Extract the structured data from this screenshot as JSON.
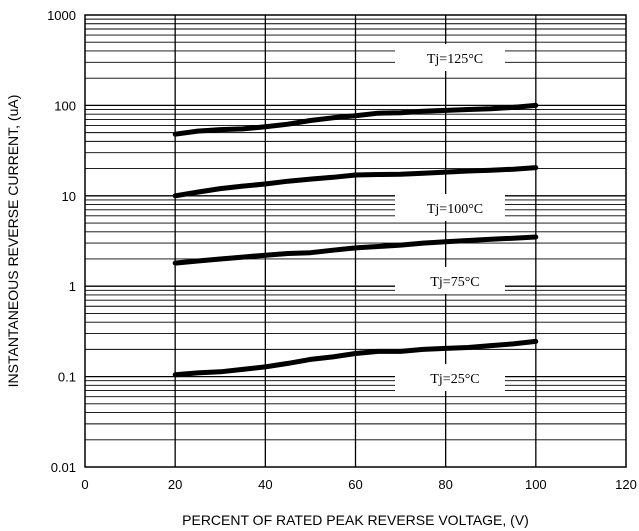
{
  "chart_data": {
    "type": "line",
    "title": "",
    "xlabel": "PERCENT OF RATED PEAK REVERSE VOLTAGE, (V)",
    "ylabel": "INSTANTANEOUS REVERSE CURRENT, (uA)",
    "xlim": [
      0,
      120
    ],
    "ylim": [
      0.01,
      1000
    ],
    "y_scale": "log",
    "grid": true,
    "x_ticks": [
      0,
      20,
      40,
      60,
      80,
      100,
      120
    ],
    "y_ticks": [
      0.01,
      0.1,
      1,
      10,
      100,
      1000
    ],
    "x_tick_labels": [
      "0",
      "20",
      "40",
      "60",
      "80",
      "100",
      "120"
    ],
    "y_tick_labels": [
      "0.01",
      "0.1",
      "1",
      "10",
      "100",
      "1000"
    ],
    "line_color": "#000000",
    "series": [
      {
        "name": "Tj=125°C",
        "x": [
          20,
          25,
          30,
          35,
          40,
          45,
          50,
          55,
          60,
          65,
          70,
          75,
          80,
          85,
          90,
          95,
          100
        ],
        "y": [
          48,
          52,
          54,
          55,
          58,
          62,
          68,
          73,
          77,
          82,
          83,
          86,
          88,
          90,
          92,
          95,
          100
        ]
      },
      {
        "name": "Tj=100°C",
        "x": [
          20,
          25,
          30,
          35,
          40,
          45,
          50,
          55,
          60,
          65,
          70,
          75,
          80,
          85,
          90,
          95,
          100
        ],
        "y": [
          10,
          11,
          12,
          12.8,
          13.5,
          14.5,
          15.3,
          16,
          17,
          17.2,
          17.3,
          17.8,
          18.3,
          18.8,
          19.2,
          19.7,
          20.5
        ]
      },
      {
        "name": "Tj=75°C",
        "x": [
          20,
          25,
          30,
          35,
          40,
          45,
          50,
          55,
          60,
          65,
          70,
          75,
          80,
          85,
          90,
          95,
          100
        ],
        "y": [
          1.8,
          1.9,
          2.0,
          2.1,
          2.2,
          2.3,
          2.35,
          2.5,
          2.65,
          2.75,
          2.85,
          3.0,
          3.1,
          3.2,
          3.3,
          3.4,
          3.5
        ]
      },
      {
        "name": "Tj=25°C",
        "x": [
          20,
          25,
          30,
          35,
          40,
          45,
          50,
          55,
          60,
          65,
          70,
          75,
          80,
          85,
          90,
          95,
          100
        ],
        "y": [
          0.105,
          0.11,
          0.113,
          0.12,
          0.128,
          0.14,
          0.155,
          0.165,
          0.18,
          0.19,
          0.19,
          0.2,
          0.205,
          0.21,
          0.22,
          0.23,
          0.245
        ]
      }
    ]
  }
}
